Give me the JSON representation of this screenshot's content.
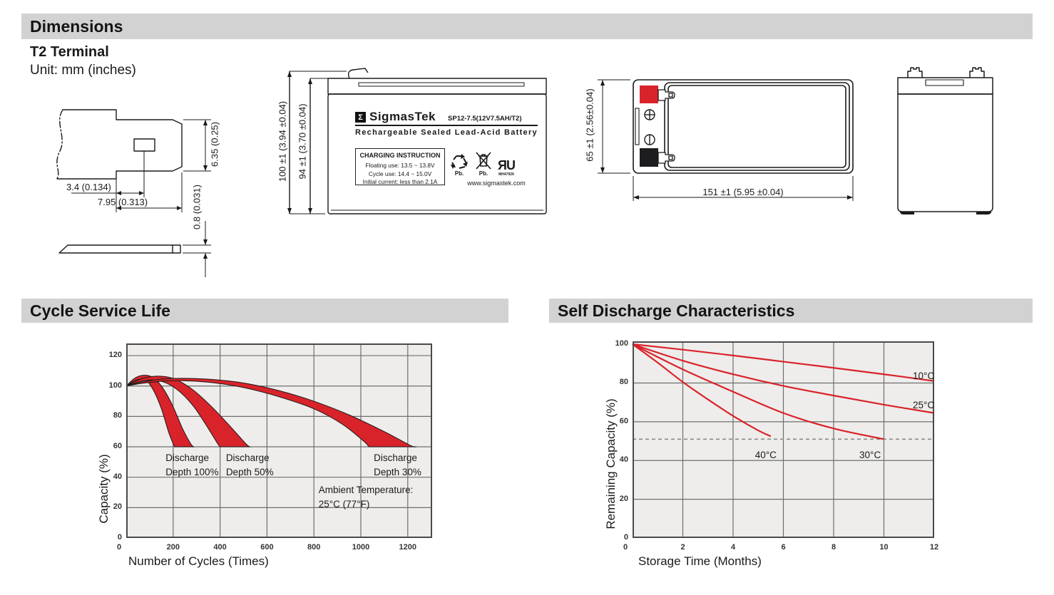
{
  "colors": {
    "accent_red": "#d9232a",
    "header_bar_bg": "#d2d2d2",
    "chart_bg": "#eeedeb",
    "grid_line": "#6f6f6f"
  },
  "sections": {
    "dimensions": "Dimensions",
    "cycle": "Cycle Service Life",
    "self_discharge": "Self Discharge Characteristics"
  },
  "dimensions_section": {
    "terminal_type": "T2 Terminal",
    "unit_note": "Unit: mm (inches)",
    "terminal_dims": {
      "hole_offset": "3.4 (0.134)",
      "tab_length": "7.95 (0.313)",
      "tab_width": "6.35 (0.25)",
      "thickness": "0.8 (0.031)"
    },
    "front_view": {
      "height_total": "100 ±1 (3.94 ±0.04)",
      "height_body": "94 ±1 (3.70 ±0.04)"
    },
    "top_view": {
      "width": "151 ±1 (5.95 ±0.04)",
      "depth": "65 ±1 (2.56±0.04)"
    },
    "label": {
      "sigma": "Σ",
      "brand": "SigmasTek",
      "model": "SP12-7.5(12V7.5AH/T2)",
      "type_line": "Rechargeable Sealed Lead-Acid Battery",
      "charging": {
        "title": "CHARGING INSTRUCTION",
        "line1": "Floating use: 13.5 ~ 13.8V",
        "line2": "Cycle use: 14.4 ~ 15.0V",
        "line3": "Initial current: less than 2.1A"
      },
      "pb_recycle": "Pb.",
      "pb_bin": "Pb.",
      "ul_code": "MH47929",
      "website": "www.sigmastek.com"
    }
  },
  "chart_data": [
    {
      "id": "cycle_service_life",
      "type": "area",
      "title": "Cycle Service Life",
      "xlabel": "Number of Cycles (Times)",
      "ylabel": "Capacity (%)",
      "xlim": [
        0,
        1304
      ],
      "ylim": [
        0,
        128
      ],
      "x_ticks": [
        0,
        200,
        400,
        600,
        800,
        1000,
        1200
      ],
      "y_ticks": [
        0,
        20,
        40,
        60,
        80,
        100,
        120
      ],
      "x_gridlines": [
        200,
        400,
        600,
        800,
        1000,
        1200
      ],
      "y_gridlines": [
        20,
        40,
        60,
        80,
        100,
        120
      ],
      "grid": true,
      "legend": "none",
      "plot_bg": "#eeedeb",
      "grid_color": "#6f6f6f",
      "border_color": "#4a4a4a",
      "band_color": "#d9232a",
      "series": [
        {
          "name": "Discharge Depth 100%",
          "upper": [
            [
              0,
              100
            ],
            [
              35,
              105
            ],
            [
              70,
              107
            ],
            [
              110,
              106
            ],
            [
              150,
              100
            ],
            [
              195,
              88
            ],
            [
              240,
              72
            ],
            [
              275,
              62
            ],
            [
              288,
              60
            ]
          ],
          "lower": [
            [
              0,
              100
            ],
            [
              30,
              103
            ],
            [
              60,
              104.5
            ],
            [
              90,
              103
            ],
            [
              120,
              96
            ],
            [
              150,
              85
            ],
            [
              180,
              70
            ],
            [
              200,
              62
            ],
            [
              206,
              60
            ]
          ]
        },
        {
          "name": "Discharge Depth 50%",
          "upper": [
            [
              0,
              100
            ],
            [
              60,
              104.5
            ],
            [
              130,
              106.5
            ],
            [
              200,
              105
            ],
            [
              280,
              98
            ],
            [
              360,
              87
            ],
            [
              440,
              74
            ],
            [
              510,
              62
            ],
            [
              527,
              60
            ]
          ],
          "lower": [
            [
              0,
              100
            ],
            [
              50,
              102.5
            ],
            [
              110,
              104
            ],
            [
              170,
              102
            ],
            [
              230,
              96
            ],
            [
              290,
              86
            ],
            [
              350,
              72
            ],
            [
              390,
              62
            ],
            [
              400,
              60
            ]
          ]
        },
        {
          "name": "Discharge Depth 30%",
          "upper": [
            [
              0,
              100
            ],
            [
              80,
              103
            ],
            [
              200,
              105
            ],
            [
              350,
              104.5
            ],
            [
              500,
              102
            ],
            [
              650,
              97
            ],
            [
              800,
              90
            ],
            [
              950,
              81
            ],
            [
              1100,
              70
            ],
            [
              1210,
              61
            ],
            [
              1237,
              60
            ]
          ],
          "lower": [
            [
              0,
              100
            ],
            [
              80,
              102
            ],
            [
              200,
              103.5
            ],
            [
              350,
              102.5
            ],
            [
              500,
              99
            ],
            [
              650,
              93
            ],
            [
              800,
              85
            ],
            [
              920,
              75
            ],
            [
              1010,
              64
            ],
            [
              1035,
              60
            ]
          ]
        }
      ],
      "annotations": [
        {
          "text": "Discharge\nDepth 100%",
          "x": 168,
          "y": 57,
          "align": "left"
        },
        {
          "text": "Discharge\nDepth 50%",
          "x": 425,
          "y": 57,
          "align": "left"
        },
        {
          "text": "Discharge\nDepth 30%",
          "x": 1055,
          "y": 57,
          "align": "left"
        },
        {
          "text": "Ambient Temperature:\n25°C (77°F)",
          "x": 820,
          "y": 36,
          "align": "left"
        }
      ]
    },
    {
      "id": "self_discharge_characteristics",
      "type": "line",
      "title": "Self Discharge Characteristics",
      "xlabel": "Storage Time (Months)",
      "ylabel": "Remaining Capacity (%)",
      "xlim": [
        0,
        12
      ],
      "ylim": [
        0,
        101.5
      ],
      "x_ticks": [
        0,
        2,
        4,
        6,
        8,
        10,
        12
      ],
      "y_ticks": [
        0,
        20,
        40,
        60,
        80,
        100
      ],
      "x_gridlines": [
        2,
        4,
        6,
        8,
        10
      ],
      "y_gridlines": [
        20,
        40,
        60,
        80
      ],
      "grid": true,
      "legend": "inline-labels",
      "plot_bg": "#eeedeb",
      "grid_color": "#6f6f6f",
      "border_color": "#4a4a4a",
      "line_color": "#d9232a",
      "dashed_line_y": 51,
      "dashed_line_color": "#8a8a8a",
      "series": [
        {
          "name": "10°C",
          "points": [
            [
              0,
              100
            ],
            [
              2,
              97.2
            ],
            [
              4,
              94.2
            ],
            [
              6,
              91
            ],
            [
              8,
              87.8
            ],
            [
              10,
              84.5
            ],
            [
              12,
              81
            ]
          ]
        },
        {
          "name": "25°C",
          "points": [
            [
              0,
              100
            ],
            [
              2,
              91.5
            ],
            [
              4,
              84.5
            ],
            [
              6,
              78.5
            ],
            [
              8,
              73.5
            ],
            [
              10,
              68.8
            ],
            [
              12,
              64.5
            ]
          ]
        },
        {
          "name": "30°C",
          "points": [
            [
              0,
              100
            ],
            [
              2,
              87
            ],
            [
              4,
              75.5
            ],
            [
              6,
              64.5
            ],
            [
              8,
              56.5
            ],
            [
              10,
              51
            ]
          ]
        },
        {
          "name": "40°C",
          "points": [
            [
              0,
              100
            ],
            [
              1,
              90.5
            ],
            [
              2,
              80.5
            ],
            [
              3,
              71.5
            ],
            [
              4,
              63
            ],
            [
              5,
              55.5
            ],
            [
              5.5,
              52.5
            ]
          ]
        }
      ],
      "annotations": [
        {
          "text": "10°C",
          "x": 11.15,
          "y": 87,
          "align": "left"
        },
        {
          "text": "25°C",
          "x": 11.15,
          "y": 72,
          "align": "left"
        },
        {
          "text": "40°C",
          "x": 5.3,
          "y": 46.5,
          "align": "center"
        },
        {
          "text": "30°C",
          "x": 9.45,
          "y": 46.5,
          "align": "center"
        }
      ]
    }
  ]
}
